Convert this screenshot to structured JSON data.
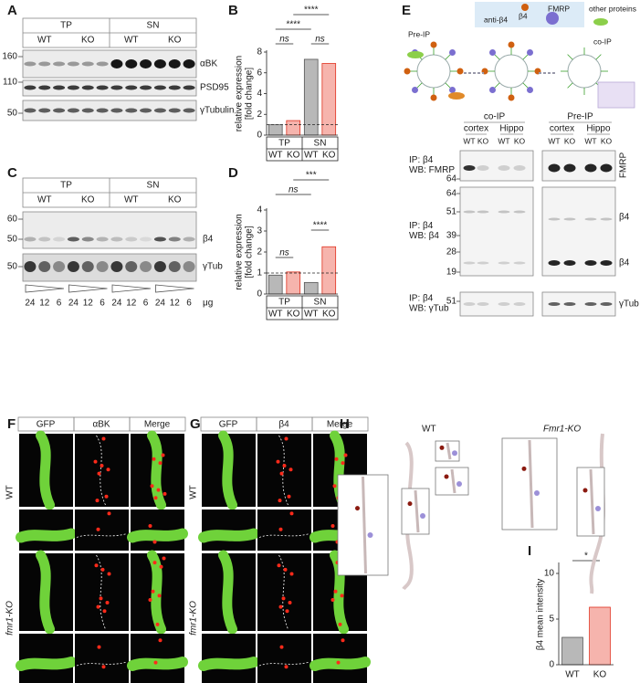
{
  "panel_labels": [
    "A",
    "B",
    "C",
    "D",
    "E",
    "F",
    "G",
    "H",
    "I"
  ],
  "colors": {
    "wt": "#1a1a1a",
    "ko": "#e0301e"
  },
  "A": {
    "groups": [
      "TP",
      "SN"
    ],
    "genotypes": [
      "WT",
      "KO",
      "WT",
      "KO"
    ],
    "markers": [
      160,
      110,
      50
    ],
    "bands": [
      "αBK",
      "PSD95",
      "γTubulin"
    ]
  },
  "C": {
    "groups": [
      "TP",
      "SN"
    ],
    "genotypes": [
      "WT",
      "KO",
      "WT",
      "KO"
    ],
    "markers": [
      60,
      50,
      50
    ],
    "bands": [
      "β4",
      "γTub"
    ],
    "amounts": [
      24,
      12,
      6,
      24,
      12,
      6,
      24,
      12,
      6,
      24,
      12,
      6
    ],
    "unit": "μg"
  },
  "E": {
    "legend": {
      "pre_ip": "Pre-IP",
      "antibody": "anti-β4",
      "beta4": "β4",
      "fmrp": "FMRP",
      "other": "other proteins",
      "co_ip": "co-IP"
    },
    "columns": [
      "co-IP",
      "Pre-IP"
    ],
    "regions": [
      "cortex",
      "Hippo",
      "cortex",
      "Hippo"
    ],
    "genotypes": [
      "WT",
      "KO",
      "WT",
      "KO",
      "WT",
      "KO",
      "WT",
      "KO"
    ],
    "blots": [
      {
        "label": [
          "IP: β4",
          "WB: FMRP"
        ],
        "markers": [
          64
        ],
        "bands": [
          "FMRP"
        ]
      },
      {
        "label": [
          "IP: β4",
          "WB: β4"
        ],
        "markers": [
          64,
          51,
          39,
          28,
          19
        ],
        "bands": [
          "β4",
          "β4"
        ]
      },
      {
        "label": [
          "IP: β4",
          "WB: γTub"
        ],
        "markers": [
          51
        ],
        "bands": [
          "γTub"
        ]
      }
    ]
  },
  "F": {
    "channels": [
      "GFP",
      "αBK",
      "Merge"
    ],
    "channel_colors": [
      "#5cc41e",
      "#e0301e",
      "#1a1a1a"
    ],
    "rows": [
      "WT",
      "fmr1-KO"
    ]
  },
  "G": {
    "channels": [
      "GFP",
      "β4",
      "Merge"
    ],
    "channel_colors": [
      "#5cc41e",
      "#e0301e",
      "#1a1a1a"
    ],
    "rows": [
      "WT",
      "fmr1-KO"
    ]
  },
  "H": {
    "titles": [
      "WT",
      "Fmr1-KO"
    ]
  },
  "chart_data": [
    {
      "type": "bar",
      "ylabel": [
        "relative expression",
        "[fold change]"
      ],
      "groups": [
        "TP",
        "SN"
      ],
      "categories": [
        "WT",
        "KO",
        "WT",
        "KO"
      ],
      "values": [
        1.0,
        1.4,
        7.3,
        6.9
      ],
      "colors": [
        "#b8b8b8",
        "#f6b4ad"
      ],
      "ylim": [
        0,
        8
      ],
      "yticks": [
        0,
        2,
        4,
        6,
        8
      ],
      "reference_line": 1,
      "significance": [
        "****",
        "****",
        "ns",
        "ns"
      ]
    },
    {
      "type": "bar",
      "ylabel": [
        "relative expression",
        "[fold change]"
      ],
      "groups": [
        "TP",
        "SN"
      ],
      "categories": [
        "WT",
        "KO",
        "WT",
        "KO"
      ],
      "values": [
        0.9,
        1.05,
        0.55,
        2.25
      ],
      "colors": [
        "#b8b8b8",
        "#f6b4ad"
      ],
      "ylim": [
        0,
        4
      ],
      "yticks": [
        0,
        1,
        2,
        3,
        4
      ],
      "reference_line": 1,
      "significance": [
        "***",
        "ns",
        "ns",
        "****"
      ]
    },
    {
      "type": "bar",
      "ylabel": [
        "β4 mean intensity"
      ],
      "categories": [
        "WT",
        "KO"
      ],
      "values": [
        3.0,
        6.3
      ],
      "colors": [
        "#b8b8b8",
        "#f6b4ad"
      ],
      "ylim": [
        0,
        11
      ],
      "yticks": [
        0,
        5,
        10
      ],
      "significance": [
        "*"
      ]
    }
  ]
}
